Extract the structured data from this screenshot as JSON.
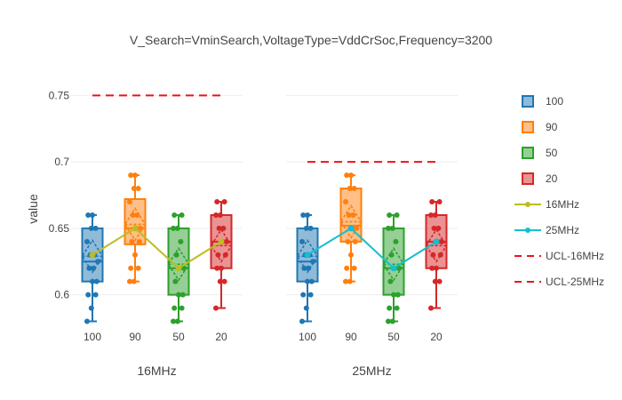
{
  "chart_data": {
    "type": "box",
    "title": "V_Search=VminSearch,VoltageType=VddCrSoc,Frequency=3200",
    "ylabel": "value",
    "ylim": [
      0.575,
      0.765
    ],
    "yticks": [
      0.6,
      0.65,
      0.7,
      0.75
    ],
    "ytick_labels": [
      "0.6",
      "0.65",
      "0.7",
      "0.75"
    ],
    "grid": true,
    "legend_position": "right",
    "categories": [
      "100",
      "90",
      "50",
      "20"
    ],
    "box_colors": {
      "100": "#1f77b4",
      "90": "#ff7f0e",
      "50": "#2ca02c",
      "20": "#d62728"
    },
    "panels": [
      {
        "xlabel": "16MHz",
        "boxes": [
          {
            "category": "100",
            "min": 0.58,
            "q1": 0.61,
            "median": 0.625,
            "q3": 0.65,
            "max": 0.66,
            "mean": 0.629,
            "points": [
              0.58,
              0.59,
              0.6,
              0.6,
              0.61,
              0.61,
              0.62,
              0.62,
              0.625,
              0.63,
              0.63,
              0.64,
              0.65,
              0.65,
              0.66,
              0.66
            ]
          },
          {
            "category": "90",
            "min": 0.61,
            "q1": 0.638,
            "median": 0.65,
            "q3": 0.672,
            "max": 0.69,
            "mean": 0.653,
            "points": [
              0.61,
              0.61,
              0.62,
              0.62,
              0.63,
              0.64,
              0.64,
              0.65,
              0.65,
              0.66,
              0.66,
              0.67,
              0.68,
              0.68,
              0.69,
              0.69
            ]
          },
          {
            "category": "50",
            "min": 0.58,
            "q1": 0.6,
            "median": 0.62,
            "q3": 0.65,
            "max": 0.66,
            "mean": 0.623,
            "points": [
              0.58,
              0.58,
              0.59,
              0.59,
              0.6,
              0.6,
              0.61,
              0.62,
              0.62,
              0.63,
              0.64,
              0.65,
              0.65,
              0.66,
              0.66
            ]
          },
          {
            "category": "20",
            "min": 0.59,
            "q1": 0.62,
            "median": 0.64,
            "q3": 0.66,
            "max": 0.67,
            "mean": 0.637,
            "points": [
              0.59,
              0.61,
              0.61,
              0.62,
              0.62,
              0.63,
              0.63,
              0.64,
              0.64,
              0.65,
              0.65,
              0.66,
              0.66,
              0.67,
              0.67
            ]
          }
        ]
      },
      {
        "xlabel": "25MHz",
        "boxes": [
          {
            "category": "100",
            "min": 0.58,
            "q1": 0.61,
            "median": 0.625,
            "q3": 0.65,
            "max": 0.66,
            "mean": 0.629,
            "points": [
              0.58,
              0.59,
              0.6,
              0.6,
              0.61,
              0.61,
              0.62,
              0.62,
              0.625,
              0.63,
              0.63,
              0.64,
              0.65,
              0.65,
              0.66,
              0.66
            ]
          },
          {
            "category": "90",
            "min": 0.61,
            "q1": 0.64,
            "median": 0.652,
            "q3": 0.68,
            "max": 0.69,
            "mean": 0.655,
            "points": [
              0.61,
              0.61,
              0.62,
              0.62,
              0.63,
              0.64,
              0.64,
              0.65,
              0.65,
              0.66,
              0.66,
              0.67,
              0.68,
              0.68,
              0.69,
              0.69
            ]
          },
          {
            "category": "50",
            "min": 0.58,
            "q1": 0.6,
            "median": 0.62,
            "q3": 0.65,
            "max": 0.66,
            "mean": 0.623,
            "points": [
              0.58,
              0.58,
              0.59,
              0.59,
              0.6,
              0.6,
              0.61,
              0.62,
              0.62,
              0.63,
              0.64,
              0.65,
              0.65,
              0.66,
              0.66
            ]
          },
          {
            "category": "20",
            "min": 0.59,
            "q1": 0.62,
            "median": 0.64,
            "q3": 0.66,
            "max": 0.67,
            "mean": 0.637,
            "points": [
              0.59,
              0.61,
              0.61,
              0.62,
              0.62,
              0.63,
              0.63,
              0.64,
              0.64,
              0.65,
              0.65,
              0.66,
              0.66,
              0.67,
              0.67
            ]
          }
        ]
      }
    ],
    "series": [
      {
        "name": "16MHz",
        "panel": 0,
        "values": [
          0.63,
          0.65,
          0.62,
          0.64
        ],
        "color": "#bcbd22"
      },
      {
        "name": "25MHz",
        "panel": 1,
        "values": [
          0.63,
          0.65,
          0.62,
          0.64
        ],
        "color": "#17becf"
      },
      {
        "name": "UCL-16MHz",
        "panel": 0,
        "constant": 0.75,
        "color": "#e8141c"
      },
      {
        "name": "UCL-25MHz",
        "panel": 1,
        "constant": 0.7,
        "color": "#e8141c"
      }
    ],
    "legend": [
      "100",
      "90",
      "50",
      "20",
      "16MHz",
      "25MHz",
      "UCL-16MHz",
      "UCL-25MHz"
    ]
  }
}
